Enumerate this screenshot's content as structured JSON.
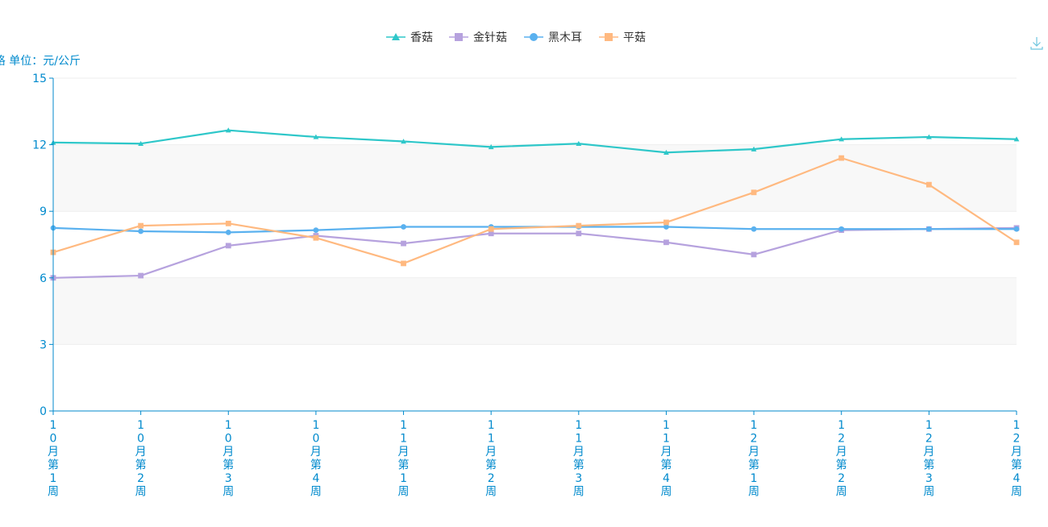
{
  "chart_data": {
    "type": "line",
    "ylabel": "价格 单位：元/公斤",
    "ylim": [
      0,
      15
    ],
    "yticks": [
      0,
      3,
      6,
      9,
      12,
      15
    ],
    "categories": [
      "10月第1周",
      "10月第2周",
      "10月第3周",
      "10月第4周",
      "11月第1周",
      "11月第2周",
      "11月第3周",
      "11月第4周",
      "12月第1周",
      "12月第2周",
      "12月第3周",
      "12月第4周"
    ],
    "grid": true,
    "legend_position": "top-center",
    "series": [
      {
        "name": "香菇",
        "marker": "triangle",
        "color": "#2ec7c9",
        "values": [
          12.1,
          12.05,
          12.65,
          12.35,
          12.15,
          11.9,
          12.05,
          11.65,
          11.8,
          12.25,
          12.35,
          12.25
        ]
      },
      {
        "name": "金针菇",
        "marker": "square",
        "color": "#b6a2de",
        "values": [
          6.0,
          6.1,
          7.45,
          7.9,
          7.55,
          8.0,
          8.0,
          7.6,
          7.05,
          8.15,
          8.2,
          8.25
        ]
      },
      {
        "name": "黑木耳",
        "marker": "circle",
        "color": "#5ab1ef",
        "values": [
          8.25,
          8.1,
          8.05,
          8.15,
          8.3,
          8.3,
          8.3,
          8.3,
          8.2,
          8.2,
          8.2,
          8.2
        ]
      },
      {
        "name": "平菇",
        "marker": "square",
        "color": "#ffb980",
        "values": [
          7.15,
          8.35,
          8.45,
          7.8,
          6.65,
          8.2,
          8.35,
          8.5,
          9.85,
          11.4,
          10.2,
          7.6
        ]
      }
    ]
  },
  "colors": {
    "axis": "#008acd",
    "band": "#f8f8f8",
    "grid": "#eeeeee"
  },
  "toolbox": {
    "icon": "download-icon"
  }
}
